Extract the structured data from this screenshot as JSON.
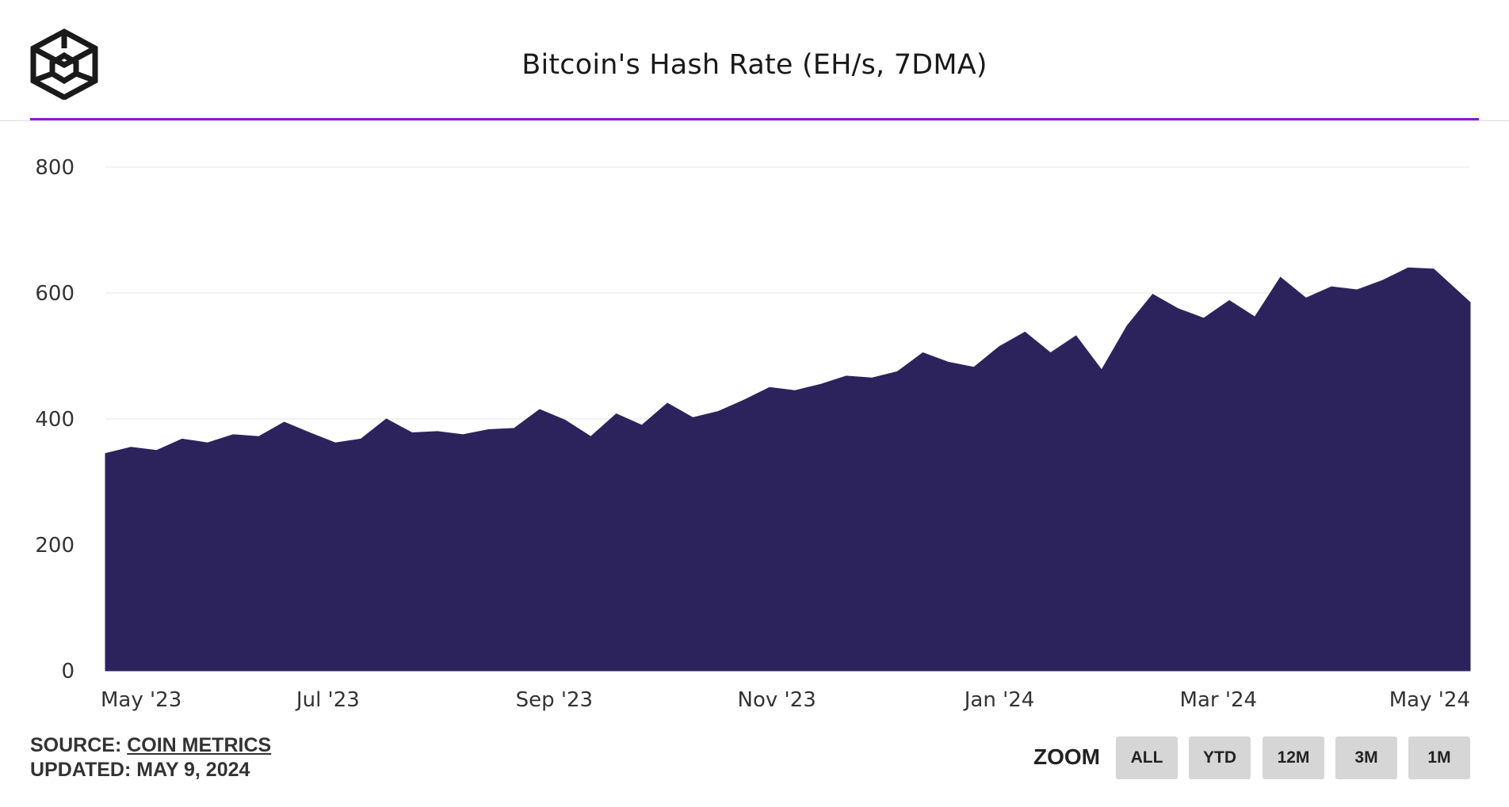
{
  "header": {
    "logo_icon": "cube-logo-icon",
    "title": "Bitcoin's Hash Rate (EH/s, 7DMA)",
    "accent_color": "#8a1bd1"
  },
  "chart_data": {
    "type": "area",
    "title": "Bitcoin's Hash Rate (EH/s, 7DMA)",
    "xlabel": "",
    "ylabel": "",
    "ylim": [
      0,
      800
    ],
    "y_ticks": [
      "0",
      "200",
      "400",
      "600",
      "800"
    ],
    "x_ticks": [
      "May '23",
      "Jul '23",
      "Sep '23",
      "Nov '23",
      "Jan '24",
      "Mar '24",
      "May '24"
    ],
    "x_range": [
      "2023-05-01",
      "2024-05-09"
    ],
    "grid": true,
    "color": "#2d235c",
    "series": [
      {
        "x": [
          "2023-05-01",
          "2023-05-08",
          "2023-05-15",
          "2023-05-22",
          "2023-05-29",
          "2023-06-05",
          "2023-06-12",
          "2023-06-19",
          "2023-06-26",
          "2023-07-03",
          "2023-07-10",
          "2023-07-17",
          "2023-07-24",
          "2023-07-31",
          "2023-08-07",
          "2023-08-14",
          "2023-08-21",
          "2023-08-28",
          "2023-09-04",
          "2023-09-11",
          "2023-09-18",
          "2023-09-25",
          "2023-10-02",
          "2023-10-09",
          "2023-10-16",
          "2023-10-23",
          "2023-10-30",
          "2023-11-06",
          "2023-11-13",
          "2023-11-20",
          "2023-11-27",
          "2023-12-04",
          "2023-12-11",
          "2023-12-18",
          "2023-12-25",
          "2024-01-01",
          "2024-01-08",
          "2024-01-15",
          "2024-01-22",
          "2024-01-29",
          "2024-02-05",
          "2024-02-12",
          "2024-02-19",
          "2024-02-26",
          "2024-03-04",
          "2024-03-11",
          "2024-03-18",
          "2024-03-25",
          "2024-04-01",
          "2024-04-08",
          "2024-04-15",
          "2024-04-22",
          "2024-04-29",
          "2024-05-09"
        ],
        "values": [
          345,
          355,
          350,
          368,
          362,
          375,
          372,
          395,
          378,
          362,
          368,
          400,
          378,
          380,
          375,
          383,
          385,
          415,
          398,
          372,
          408,
          390,
          425,
          402,
          412,
          430,
          450,
          445,
          455,
          468,
          465,
          475,
          505,
          490,
          482,
          515,
          538,
          505,
          532,
          478,
          548,
          598,
          575,
          560,
          588,
          562,
          625,
          592,
          610,
          605,
          620,
          640,
          638,
          585
        ]
      }
    ]
  },
  "footer": {
    "source_prefix": "SOURCE: ",
    "source_link": "COIN METRICS",
    "updated": "UPDATED: MAY 9, 2024"
  },
  "zoom": {
    "label": "ZOOM",
    "buttons": [
      "ALL",
      "YTD",
      "12M",
      "3M",
      "1M"
    ]
  }
}
